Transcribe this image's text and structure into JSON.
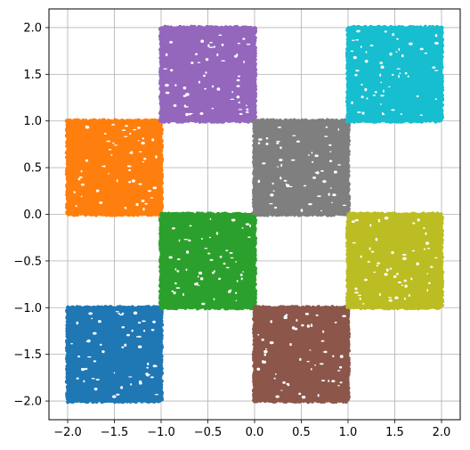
{
  "chart_data": {
    "type": "scatter",
    "title": "",
    "xlabel": "",
    "ylabel": "",
    "xlim": [
      -2.2,
      2.2
    ],
    "ylim": [
      -2.2,
      2.2
    ],
    "grid": true,
    "legend": "none",
    "xticks": [
      -2.0,
      -1.5,
      -1.0,
      -0.5,
      0.0,
      0.5,
      1.0,
      1.5,
      2.0
    ],
    "yticks": [
      -2.0,
      -1.5,
      -1.0,
      -0.5,
      0.0,
      0.5,
      1.0,
      1.5,
      2.0
    ],
    "xtick_labels": [
      "−2.0",
      "−1.5",
      "−1.0",
      "−0.5",
      "0.0",
      "0.5",
      "1.0",
      "1.5",
      "2.0"
    ],
    "ytick_labels": [
      "−2.0",
      "−1.5",
      "−1.0",
      "−0.5",
      "0.0",
      "0.5",
      "1.0",
      "1.5",
      "2.0"
    ],
    "series": [
      {
        "color": "#1f77b4",
        "x_range": [
          -2,
          -1
        ],
        "y_range": [
          -2,
          -1
        ]
      },
      {
        "color": "#ff7f0e",
        "x_range": [
          -2,
          -1
        ],
        "y_range": [
          0,
          1
        ]
      },
      {
        "color": "#2ca02c",
        "x_range": [
          -1,
          0
        ],
        "y_range": [
          -1,
          0
        ]
      },
      {
        "color": "#9467bd",
        "x_range": [
          -1,
          0
        ],
        "y_range": [
          1,
          2
        ]
      },
      {
        "color": "#8c564b",
        "x_range": [
          0,
          1
        ],
        "y_range": [
          -2,
          -1
        ]
      },
      {
        "color": "#7f7f7f",
        "x_range": [
          0,
          1
        ],
        "y_range": [
          0,
          1
        ]
      },
      {
        "color": "#bcbd22",
        "x_range": [
          1,
          2
        ],
        "y_range": [
          -1,
          0
        ]
      },
      {
        "color": "#17becf",
        "x_range": [
          1,
          2
        ],
        "y_range": [
          1,
          2
        ]
      }
    ]
  }
}
